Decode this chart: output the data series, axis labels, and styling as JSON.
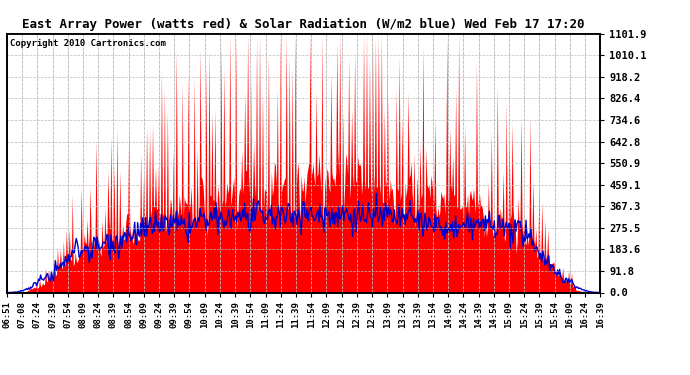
{
  "title": "East Array Power (watts red) & Solar Radiation (W/m2 blue) Wed Feb 17 17:20",
  "copyright": "Copyright 2010 Cartronics.com",
  "bg_color": "#ffffff",
  "plot_bg_color": "#ffffff",
  "grid_color": "#bbbbbb",
  "red_color": "#ff0000",
  "blue_color": "#0000cc",
  "ymin": 0.0,
  "ymax": 1101.9,
  "yticks": [
    0.0,
    91.8,
    183.6,
    275.5,
    367.3,
    459.1,
    550.9,
    642.8,
    734.6,
    826.4,
    918.2,
    1010.1,
    1101.9
  ],
  "time_labels": [
    "06:51",
    "07:08",
    "07:24",
    "07:39",
    "07:54",
    "08:09",
    "08:24",
    "08:39",
    "08:54",
    "09:09",
    "09:24",
    "09:39",
    "09:54",
    "10:09",
    "10:24",
    "10:39",
    "10:54",
    "11:09",
    "11:24",
    "11:39",
    "11:54",
    "12:09",
    "12:24",
    "12:39",
    "12:54",
    "13:09",
    "13:24",
    "13:39",
    "13:54",
    "14:09",
    "14:24",
    "14:39",
    "14:54",
    "15:09",
    "15:24",
    "15:39",
    "15:54",
    "16:09",
    "16:24",
    "16:39"
  ]
}
